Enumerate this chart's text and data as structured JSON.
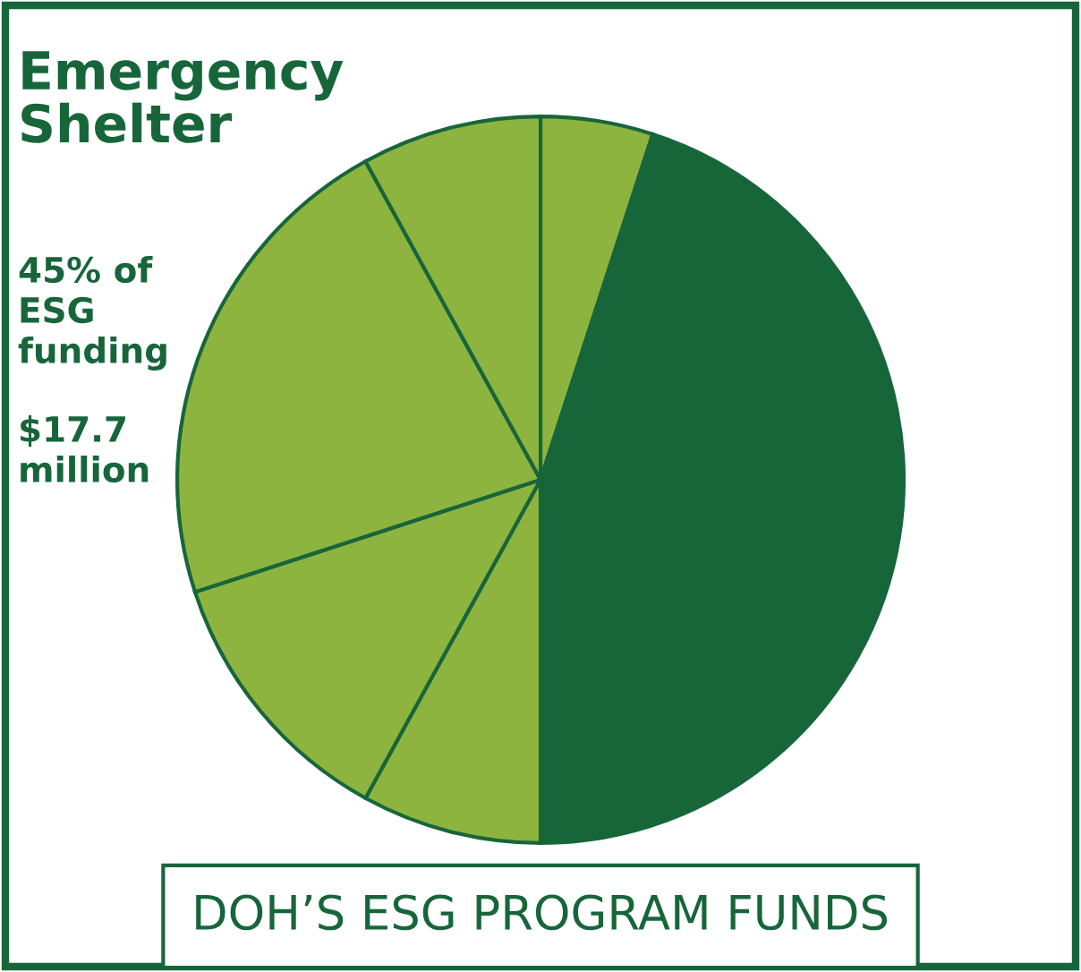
{
  "chart_data": {
    "type": "pie",
    "title": "DOH’S ESG PROGRAM FUNDS",
    "subtitle": "Emergency\nShelter",
    "categories": [
      null,
      null,
      null,
      null,
      null,
      null
    ],
    "values": [
      5,
      45,
      8,
      12,
      22,
      8
    ],
    "colors": [
      "#8db43e",
      "#17663a",
      "#8db43e",
      "#8db43e",
      "#8db43e",
      "#8db43e"
    ],
    "annotations": [
      "45% of\nESG\nfunding",
      "$17.7\nmillion"
    ]
  }
}
